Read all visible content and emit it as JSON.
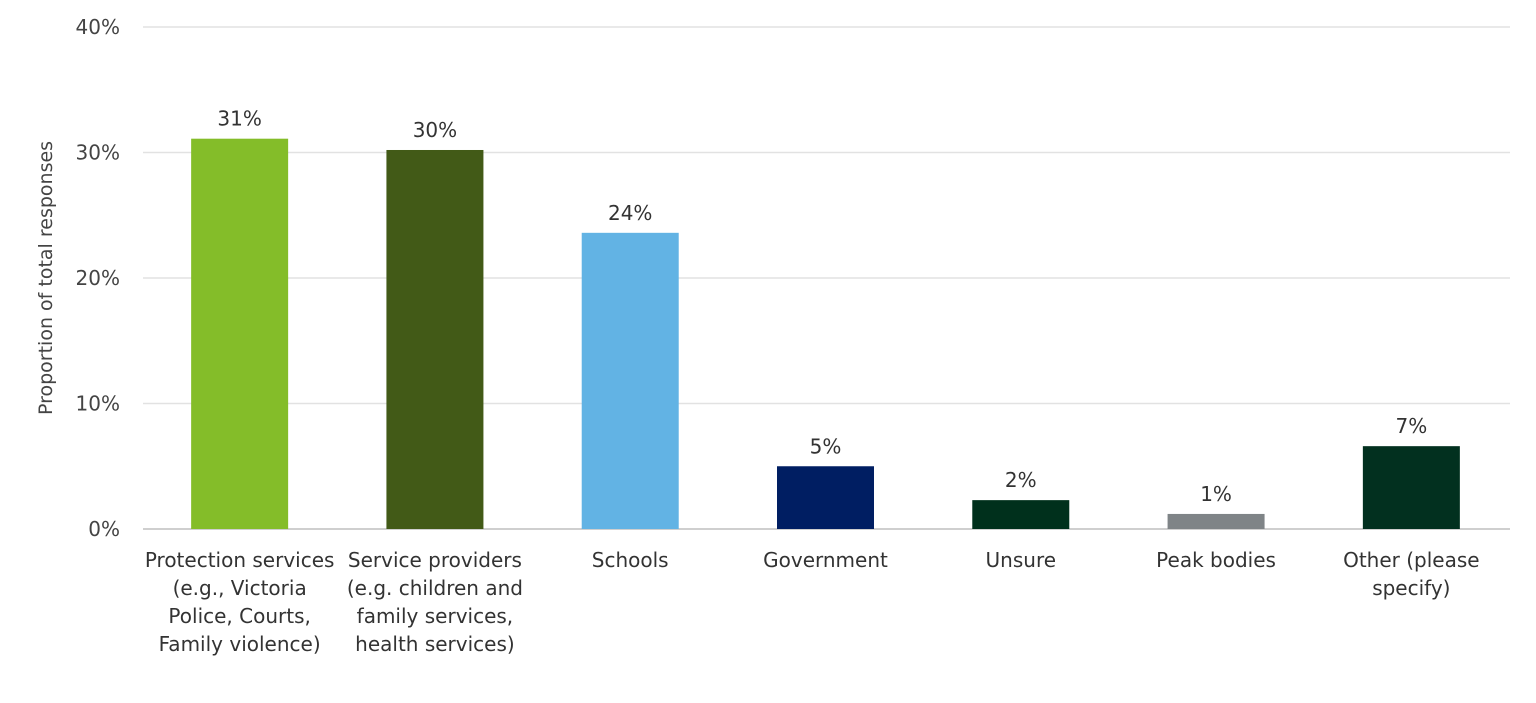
{
  "chart_data": {
    "type": "bar",
    "title": "",
    "xlabel": "",
    "ylabel": "Proportion of total responses",
    "ylim": [
      0,
      40
    ],
    "yticks": [
      0,
      10,
      20,
      30,
      40
    ],
    "ytick_labels": [
      "0%",
      "10%",
      "20%",
      "30%",
      "40%"
    ],
    "grid": "horizontal",
    "categories": [
      "Protection services (e.g., Victoria Police, Courts, Family violence)",
      "Service providers (e.g. children and family services, health services)",
      "Schools",
      "Government",
      "Unsure",
      "Peak bodies",
      "Other (please specify)"
    ],
    "values": [
      31.1,
      30.2,
      23.6,
      5.0,
      2.3,
      1.2,
      6.6
    ],
    "data_labels": [
      "31%",
      "30%",
      "24%",
      "5%",
      "2%",
      "1%",
      "7%"
    ],
    "colors": [
      "#84bd29",
      "#425a17",
      "#62b3e4",
      "#001e62",
      "#00301c",
      "#7f8487",
      "#02301f"
    ]
  }
}
